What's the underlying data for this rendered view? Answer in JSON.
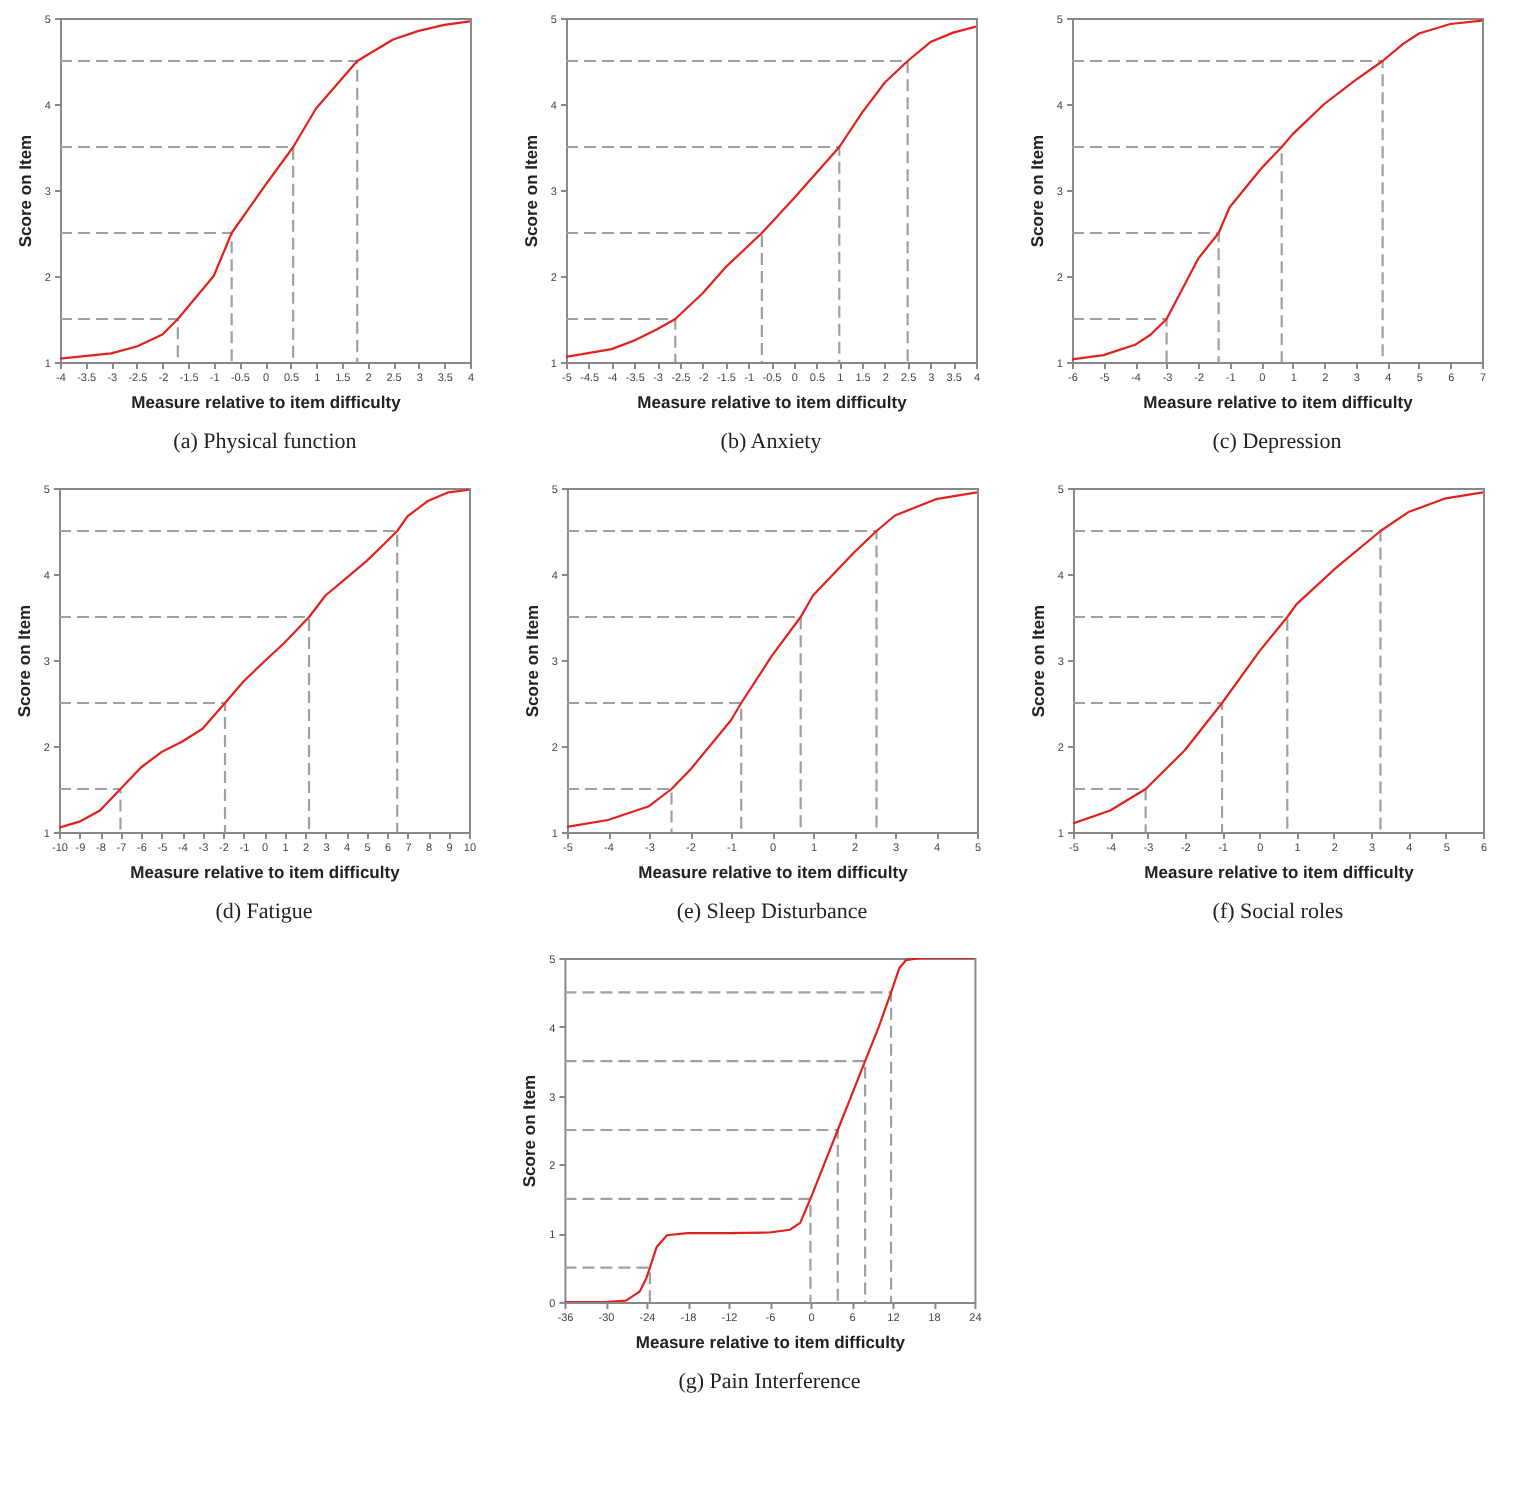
{
  "chart_data": [
    {
      "type": "line",
      "title": "(a) Physical function",
      "xlabel": "Measure relative to item difficulty",
      "ylabel": "Score on Item",
      "xlim": [
        -4,
        4
      ],
      "xticks": [
        -4,
        -3.5,
        -3,
        -2.5,
        -2,
        -1.5,
        -1,
        -0.5,
        0,
        0.5,
        1,
        1.5,
        2,
        2.5,
        3,
        3.5,
        4
      ],
      "ylim": [
        1,
        5
      ],
      "yticks": [
        1,
        2,
        3,
        4,
        5
      ],
      "grid": false,
      "series": [
        {
          "color": "#a0a0a0",
          "line_style": "dashed",
          "x": [
            -4,
            -1.7,
            -1.7
          ],
          "values": [
            1.5,
            1.5,
            1
          ]
        },
        {
          "color": "#a0a0a0",
          "line_style": "dashed",
          "x": [
            -4,
            -0.65,
            -0.65
          ],
          "values": [
            2.5,
            2.5,
            1
          ]
        },
        {
          "color": "#a0a0a0",
          "line_style": "dashed",
          "x": [
            -4,
            0.55,
            0.55
          ],
          "values": [
            3.5,
            3.5,
            1
          ]
        },
        {
          "color": "#a0a0a0",
          "line_style": "dashed",
          "x": [
            -4,
            1.8,
            1.8
          ],
          "values": [
            4.5,
            4.5,
            1
          ]
        },
        {
          "color": "#e3211c",
          "line_style": "solid",
          "x": [
            -4,
            -3,
            -2.5,
            -2,
            -1.7,
            -1,
            -0.65,
            0,
            0.55,
            1,
            1.8,
            2.5,
            3,
            3.5,
            4
          ],
          "values": [
            1.04,
            1.1,
            1.18,
            1.32,
            1.5,
            2.0,
            2.5,
            3.05,
            3.5,
            3.95,
            4.5,
            4.75,
            4.85,
            4.92,
            4.96
          ]
        }
      ]
    },
    {
      "type": "line",
      "title": "(b) Anxiety",
      "xlabel": "Measure relative to item difficulty",
      "ylabel": "Score on Item",
      "xlim": [
        -5,
        4
      ],
      "xticks": [
        -5,
        -4.5,
        -4,
        -3.5,
        -3,
        -2.5,
        -2,
        -1.5,
        -1,
        -0.5,
        0,
        0.5,
        1,
        1.5,
        2,
        2.5,
        3,
        3.5,
        4
      ],
      "ylim": [
        1,
        5
      ],
      "yticks": [
        1,
        2,
        3,
        4,
        5
      ],
      "grid": false,
      "series": [
        {
          "color": "#a0a0a0",
          "line_style": "dashed",
          "x": [
            -5,
            -2.6,
            -2.6
          ],
          "values": [
            1.5,
            1.5,
            1
          ]
        },
        {
          "color": "#a0a0a0",
          "line_style": "dashed",
          "x": [
            -5,
            -0.7,
            -0.7
          ],
          "values": [
            2.5,
            2.5,
            1
          ]
        },
        {
          "color": "#a0a0a0",
          "line_style": "dashed",
          "x": [
            -5,
            1.0,
            1.0
          ],
          "values": [
            3.5,
            3.5,
            1
          ]
        },
        {
          "color": "#a0a0a0",
          "line_style": "dashed",
          "x": [
            -5,
            2.5,
            2.5
          ],
          "values": [
            4.5,
            4.5,
            1
          ]
        },
        {
          "color": "#e3211c",
          "line_style": "solid",
          "x": [
            -5,
            -4,
            -3.5,
            -3,
            -2.6,
            -2,
            -1.5,
            -0.7,
            0,
            0.5,
            1,
            1.5,
            2,
            2.5,
            3,
            3.5,
            4
          ],
          "values": [
            1.06,
            1.15,
            1.25,
            1.38,
            1.5,
            1.8,
            2.1,
            2.5,
            2.9,
            3.2,
            3.5,
            3.9,
            4.25,
            4.5,
            4.72,
            4.83,
            4.9
          ]
        }
      ]
    },
    {
      "type": "line",
      "title": "(c) Depression",
      "xlabel": "Measure relative to item difficulty",
      "ylabel": "Score on Item",
      "xlim": [
        -6,
        7
      ],
      "xticks": [
        -6,
        -5,
        -4,
        -3,
        -2,
        -1,
        0,
        1,
        2,
        3,
        4,
        5,
        6,
        7
      ],
      "ylim": [
        1,
        5
      ],
      "yticks": [
        1,
        2,
        3,
        4,
        5
      ],
      "grid": false,
      "series": [
        {
          "color": "#a0a0a0",
          "line_style": "dashed",
          "x": [
            -6,
            -3,
            -3
          ],
          "values": [
            1.5,
            1.5,
            1
          ]
        },
        {
          "color": "#a0a0a0",
          "line_style": "dashed",
          "x": [
            -6,
            -1.35,
            -1.35
          ],
          "values": [
            2.5,
            2.5,
            1
          ]
        },
        {
          "color": "#a0a0a0",
          "line_style": "dashed",
          "x": [
            -6,
            0.65,
            0.65
          ],
          "values": [
            3.5,
            3.5,
            1
          ]
        },
        {
          "color": "#a0a0a0",
          "line_style": "dashed",
          "x": [
            -6,
            3.85,
            3.85
          ],
          "values": [
            4.5,
            4.5,
            1
          ]
        },
        {
          "color": "#e3211c",
          "line_style": "solid",
          "x": [
            -6,
            -5,
            -4,
            -3.5,
            -3,
            -2.5,
            -2,
            -1.35,
            -1,
            0,
            0.65,
            1,
            2,
            3,
            3.85,
            4.5,
            5,
            6,
            7
          ],
          "values": [
            1.03,
            1.08,
            1.2,
            1.32,
            1.5,
            1.85,
            2.2,
            2.5,
            2.8,
            3.25,
            3.5,
            3.65,
            4.0,
            4.28,
            4.5,
            4.7,
            4.82,
            4.93,
            4.97
          ]
        }
      ]
    },
    {
      "type": "line",
      "title": "(d) Fatigue",
      "xlabel": "Measure relative to item difficulty",
      "ylabel": "Score on Item",
      "xlim": [
        -10,
        10
      ],
      "xticks": [
        -10,
        -9,
        -8,
        -7,
        -6,
        -5,
        -4,
        -3,
        -2,
        -1,
        0,
        1,
        2,
        3,
        4,
        5,
        6,
        7,
        8,
        9,
        10
      ],
      "ylim": [
        1,
        5
      ],
      "yticks": [
        1,
        2,
        3,
        4,
        5
      ],
      "grid": false,
      "series": [
        {
          "color": "#a0a0a0",
          "line_style": "dashed",
          "x": [
            -10,
            -7,
            -7
          ],
          "values": [
            1.5,
            1.5,
            1
          ]
        },
        {
          "color": "#a0a0a0",
          "line_style": "dashed",
          "x": [
            -10,
            -1.9,
            -1.9
          ],
          "values": [
            2.5,
            2.5,
            1
          ]
        },
        {
          "color": "#a0a0a0",
          "line_style": "dashed",
          "x": [
            -10,
            2.2,
            2.2
          ],
          "values": [
            3.5,
            3.5,
            1
          ]
        },
        {
          "color": "#a0a0a0",
          "line_style": "dashed",
          "x": [
            -10,
            6.5,
            6.5
          ],
          "values": [
            4.5,
            4.5,
            1
          ]
        },
        {
          "color": "#e3211c",
          "line_style": "solid",
          "x": [
            -10,
            -9,
            -8,
            -7,
            -6,
            -5,
            -4,
            -3,
            -1.9,
            -1,
            0,
            1,
            2.2,
            3,
            4,
            5,
            6,
            6.5,
            7,
            8,
            9,
            10
          ],
          "values": [
            1.05,
            1.12,
            1.25,
            1.5,
            1.75,
            1.93,
            2.05,
            2.2,
            2.5,
            2.75,
            2.98,
            3.2,
            3.5,
            3.75,
            3.95,
            4.15,
            4.38,
            4.5,
            4.67,
            4.85,
            4.95,
            4.98
          ]
        }
      ]
    },
    {
      "type": "line",
      "title": "(e) Sleep Disturbance",
      "xlabel": "Measure relative to item difficulty",
      "ylabel": "Score on Item",
      "xlim": [
        -5,
        5
      ],
      "xticks": [
        -5,
        -4,
        -3,
        -2,
        -1,
        0,
        1,
        2,
        3,
        4,
        5
      ],
      "ylim": [
        1,
        5
      ],
      "yticks": [
        1,
        2,
        3,
        4,
        5
      ],
      "grid": false,
      "series": [
        {
          "color": "#a0a0a0",
          "line_style": "dashed",
          "x": [
            -5,
            -2.45,
            -2.45
          ],
          "values": [
            1.5,
            1.5,
            1
          ]
        },
        {
          "color": "#a0a0a0",
          "line_style": "dashed",
          "x": [
            -5,
            -0.75,
            -0.75
          ],
          "values": [
            2.5,
            2.5,
            1
          ]
        },
        {
          "color": "#a0a0a0",
          "line_style": "dashed",
          "x": [
            -5,
            0.7,
            0.7
          ],
          "values": [
            3.5,
            3.5,
            1
          ]
        },
        {
          "color": "#a0a0a0",
          "line_style": "dashed",
          "x": [
            -5,
            2.55,
            2.55
          ],
          "values": [
            4.5,
            4.5,
            1
          ]
        },
        {
          "color": "#e3211c",
          "line_style": "solid",
          "x": [
            -5,
            -4,
            -3,
            -2.45,
            -2,
            -1,
            -0.75,
            0,
            0.7,
            1,
            2,
            2.55,
            3,
            4,
            5
          ],
          "values": [
            1.06,
            1.14,
            1.3,
            1.5,
            1.72,
            2.3,
            2.5,
            3.05,
            3.5,
            3.75,
            4.25,
            4.5,
            4.68,
            4.87,
            4.95
          ]
        }
      ]
    },
    {
      "type": "line",
      "title": "(f) Social roles",
      "xlabel": "Measure relative to item difficulty",
      "ylabel": "Score on Item",
      "xlim": [
        -5,
        6
      ],
      "xticks": [
        -5,
        -4,
        -3,
        -2,
        -1,
        0,
        1,
        2,
        3,
        4,
        5,
        6
      ],
      "ylim": [
        1,
        5
      ],
      "yticks": [
        1,
        2,
        3,
        4,
        5
      ],
      "grid": false,
      "series": [
        {
          "color": "#a0a0a0",
          "line_style": "dashed",
          "x": [
            -5,
            -3.05,
            -3.05
          ],
          "values": [
            1.5,
            1.5,
            1
          ]
        },
        {
          "color": "#a0a0a0",
          "line_style": "dashed",
          "x": [
            -5,
            -1.0,
            -1.0
          ],
          "values": [
            2.5,
            2.5,
            1
          ]
        },
        {
          "color": "#a0a0a0",
          "line_style": "dashed",
          "x": [
            -5,
            0.75,
            0.75
          ],
          "values": [
            3.5,
            3.5,
            1
          ]
        },
        {
          "color": "#a0a0a0",
          "line_style": "dashed",
          "x": [
            -5,
            3.25,
            3.25
          ],
          "values": [
            4.5,
            4.5,
            1
          ]
        },
        {
          "color": "#e3211c",
          "line_style": "solid",
          "x": [
            -5,
            -4,
            -3.05,
            -2,
            -1,
            0,
            0.75,
            1,
            2,
            3.25,
            4,
            5,
            6
          ],
          "values": [
            1.1,
            1.25,
            1.5,
            1.95,
            2.5,
            3.1,
            3.5,
            3.65,
            4.05,
            4.5,
            4.72,
            4.88,
            4.95
          ]
        }
      ]
    },
    {
      "type": "line",
      "title": "(g) Pain Interference",
      "xlabel": "Measure relative to item difficulty",
      "ylabel": "Score on Item",
      "xlim": [
        -36,
        24
      ],
      "xticks": [
        -36,
        -30,
        -24,
        -18,
        -12,
        -6,
        0,
        6,
        12,
        18,
        24
      ],
      "ylim": [
        0,
        5
      ],
      "yticks": [
        0,
        1,
        2,
        3,
        4,
        5
      ],
      "grid": false,
      "series": [
        {
          "color": "#a0a0a0",
          "line_style": "dashed",
          "x": [
            -36,
            -23.5,
            -23.5
          ],
          "values": [
            0.5,
            0.5,
            0
          ]
        },
        {
          "color": "#a0a0a0",
          "line_style": "dashed",
          "x": [
            -36,
            0,
            0
          ],
          "values": [
            1.5,
            1.5,
            0
          ]
        },
        {
          "color": "#a0a0a0",
          "line_style": "dashed",
          "x": [
            -36,
            4,
            4
          ],
          "values": [
            2.5,
            2.5,
            0
          ]
        },
        {
          "color": "#a0a0a0",
          "line_style": "dashed",
          "x": [
            -36,
            8,
            8
          ],
          "values": [
            3.5,
            3.5,
            0
          ]
        },
        {
          "color": "#a0a0a0",
          "line_style": "dashed",
          "x": [
            -36,
            11.8,
            11.8
          ],
          "values": [
            4.5,
            4.5,
            0
          ]
        },
        {
          "color": "#e3211c",
          "line_style": "solid",
          "x": [
            -36,
            -30,
            -27,
            -25,
            -24,
            -23.5,
            -22.5,
            -21,
            -18,
            -12,
            -6,
            -3,
            -1.5,
            0,
            2,
            4,
            6,
            8,
            10,
            11.8,
            13,
            14,
            16,
            24
          ],
          "values": [
            0,
            0,
            0.02,
            0.15,
            0.35,
            0.5,
            0.8,
            0.97,
            1.0,
            1.0,
            1.01,
            1.05,
            1.15,
            1.5,
            2.0,
            2.5,
            3.0,
            3.5,
            4.0,
            4.5,
            4.85,
            4.97,
            5,
            5
          ]
        }
      ]
    }
  ]
}
